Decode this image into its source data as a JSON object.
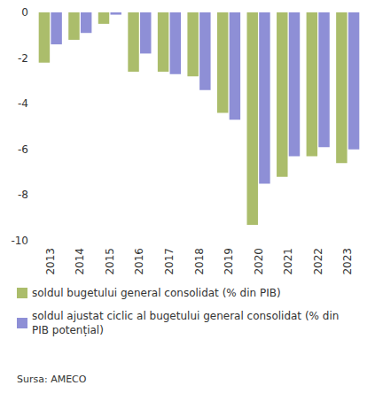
{
  "chart_data": {
    "type": "bar",
    "categories": [
      "2013",
      "2014",
      "2015",
      "2016",
      "2017",
      "2018",
      "2019",
      "2020",
      "2021",
      "2022",
      "2023"
    ],
    "series": [
      {
        "name": "soldul bugetului general consolidat (% din PIB)",
        "color": "#abbd6b",
        "values": [
          -2.2,
          -1.2,
          -0.5,
          -2.6,
          -2.6,
          -2.8,
          -4.4,
          -9.3,
          -7.2,
          -6.3,
          -6.6
        ]
      },
      {
        "name": "soldul ajustat ciclic al bugetului general consolidat (% din PIB potențial)",
        "color": "#8e8fd6",
        "values": [
          -1.4,
          -0.9,
          -0.1,
          -1.8,
          -2.7,
          -3.4,
          -4.7,
          -7.5,
          -6.3,
          -5.9,
          -6.0
        ]
      }
    ],
    "ylim": [
      -10,
      0
    ],
    "yticks": [
      -10,
      -8,
      -6,
      -4,
      -2,
      0
    ],
    "grid": false,
    "legend": "bottom",
    "source": "Sursa: AMECO"
  }
}
